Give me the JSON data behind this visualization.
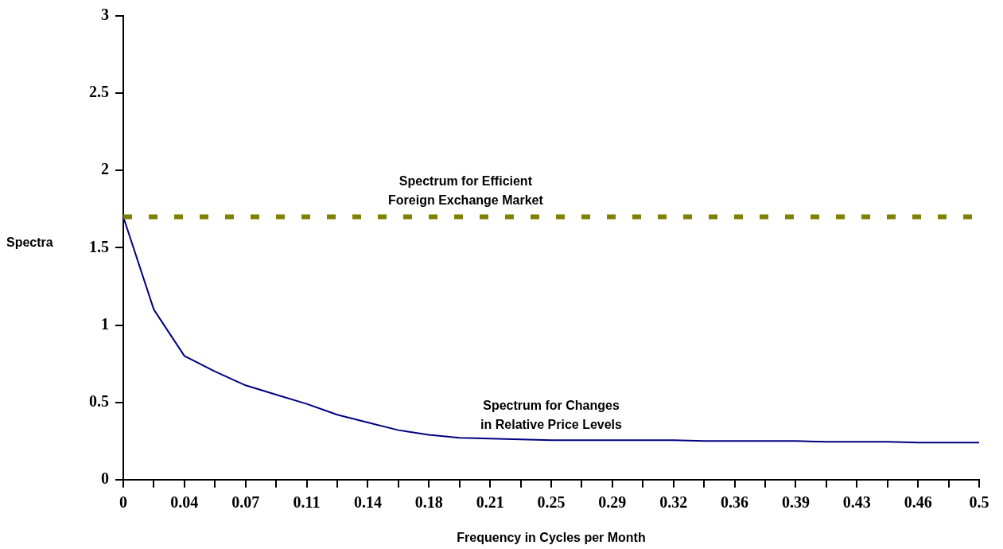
{
  "chart_data": {
    "type": "line",
    "xlabel": "Frequency in Cycles per Month",
    "ylabel": "Spectra",
    "categories": [
      "0",
      null,
      "0.04",
      null,
      "0.07",
      null,
      "0.11",
      null,
      "0.14",
      null,
      "0.18",
      null,
      "0.21",
      null,
      "0.25",
      null,
      "0.29",
      null,
      "0.32",
      null,
      "0.36",
      null,
      "0.39",
      null,
      "0.43",
      null,
      "0.46",
      null,
      "0.5"
    ],
    "series": [
      {
        "name": "Spectrum for Changes\nin Relative Price Levels",
        "color": "#000080",
        "values": [
          1.7,
          1.1,
          0.8,
          0.7,
          0.61,
          0.55,
          0.49,
          0.42,
          0.37,
          0.32,
          0.29,
          0.27,
          0.265,
          0.26,
          0.255,
          0.255,
          0.255,
          0.255,
          0.255,
          0.25,
          0.25,
          0.25,
          0.25,
          0.245,
          0.245,
          0.245,
          0.24,
          0.24,
          0.24
        ]
      }
    ],
    "ylim": [
      0,
      3
    ],
    "yticks": [
      0,
      0.5,
      1,
      1.5,
      2,
      2.5,
      3
    ],
    "ref_lines": [
      {
        "axis": "y",
        "value": 1.7,
        "label": "Spectrum for Efficient\nForeign Exchange Market",
        "color": "#808000",
        "line_style": "dashed"
      }
    ],
    "grid": false,
    "legend": false,
    "marker": "none",
    "line_style": "solid"
  }
}
